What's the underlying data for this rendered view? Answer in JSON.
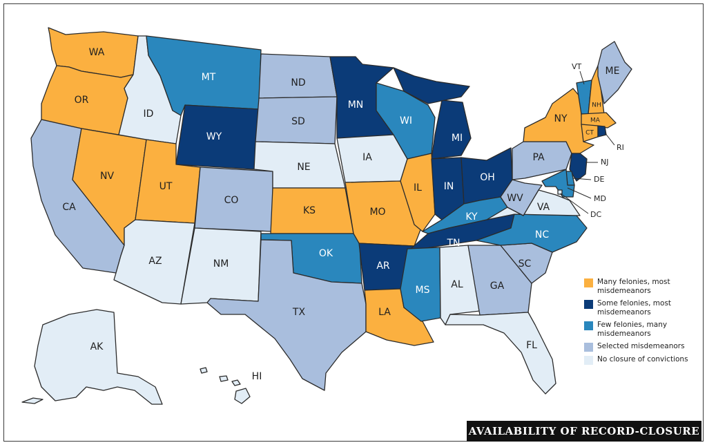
{
  "title": "AVAILABILITY OF RECORD-CLOSURE",
  "colors": {
    "many": "#fbb040",
    "some": "#0b3b78",
    "few": "#2a87bd",
    "selected": "#a9bedd",
    "none": "#e2edf6",
    "border": "#2b2b2b"
  },
  "legend": [
    {
      "category": "many",
      "label": "Many felonies, most misdemeanors"
    },
    {
      "category": "some",
      "label": "Some felonies, most misdemeanors"
    },
    {
      "category": "few",
      "label": "Few felonies, many misdemeanors"
    },
    {
      "category": "selected",
      "label": "Selected misdemeanors"
    },
    {
      "category": "none",
      "label": "No closure of convictions"
    }
  ],
  "states": [
    {
      "abbr": "WA",
      "category": "many"
    },
    {
      "abbr": "OR",
      "category": "many"
    },
    {
      "abbr": "CA",
      "category": "selected"
    },
    {
      "abbr": "NV",
      "category": "many"
    },
    {
      "abbr": "ID",
      "category": "none"
    },
    {
      "abbr": "MT",
      "category": "few"
    },
    {
      "abbr": "WY",
      "category": "some"
    },
    {
      "abbr": "UT",
      "category": "many"
    },
    {
      "abbr": "AZ",
      "category": "none"
    },
    {
      "abbr": "CO",
      "category": "selected"
    },
    {
      "abbr": "NM",
      "category": "none"
    },
    {
      "abbr": "ND",
      "category": "selected"
    },
    {
      "abbr": "SD",
      "category": "selected"
    },
    {
      "abbr": "NE",
      "category": "none"
    },
    {
      "abbr": "KS",
      "category": "many"
    },
    {
      "abbr": "OK",
      "category": "few"
    },
    {
      "abbr": "TX",
      "category": "selected"
    },
    {
      "abbr": "MN",
      "category": "some"
    },
    {
      "abbr": "IA",
      "category": "none"
    },
    {
      "abbr": "MO",
      "category": "many"
    },
    {
      "abbr": "AR",
      "category": "some"
    },
    {
      "abbr": "LA",
      "category": "many"
    },
    {
      "abbr": "WI",
      "category": "few"
    },
    {
      "abbr": "IL",
      "category": "many"
    },
    {
      "abbr": "MI",
      "category": "some"
    },
    {
      "abbr": "IN",
      "category": "some"
    },
    {
      "abbr": "OH",
      "category": "some"
    },
    {
      "abbr": "KY",
      "category": "few"
    },
    {
      "abbr": "TN",
      "category": "some"
    },
    {
      "abbr": "MS",
      "category": "few"
    },
    {
      "abbr": "AL",
      "category": "none"
    },
    {
      "abbr": "GA",
      "category": "selected"
    },
    {
      "abbr": "FL",
      "category": "none"
    },
    {
      "abbr": "SC",
      "category": "selected"
    },
    {
      "abbr": "NC",
      "category": "few"
    },
    {
      "abbr": "VA",
      "category": "none"
    },
    {
      "abbr": "WV",
      "category": "selected"
    },
    {
      "abbr": "PA",
      "category": "selected"
    },
    {
      "abbr": "NY",
      "category": "many"
    },
    {
      "abbr": "VT",
      "category": "few"
    },
    {
      "abbr": "NH",
      "category": "many"
    },
    {
      "abbr": "ME",
      "category": "selected"
    },
    {
      "abbr": "MA",
      "category": "many"
    },
    {
      "abbr": "CT",
      "category": "many"
    },
    {
      "abbr": "RI",
      "category": "some"
    },
    {
      "abbr": "NJ",
      "category": "some"
    },
    {
      "abbr": "DE",
      "category": "few"
    },
    {
      "abbr": "MD",
      "category": "few"
    },
    {
      "abbr": "DC",
      "category": "none"
    },
    {
      "abbr": "AK",
      "category": "none"
    },
    {
      "abbr": "HI",
      "category": "none"
    }
  ]
}
